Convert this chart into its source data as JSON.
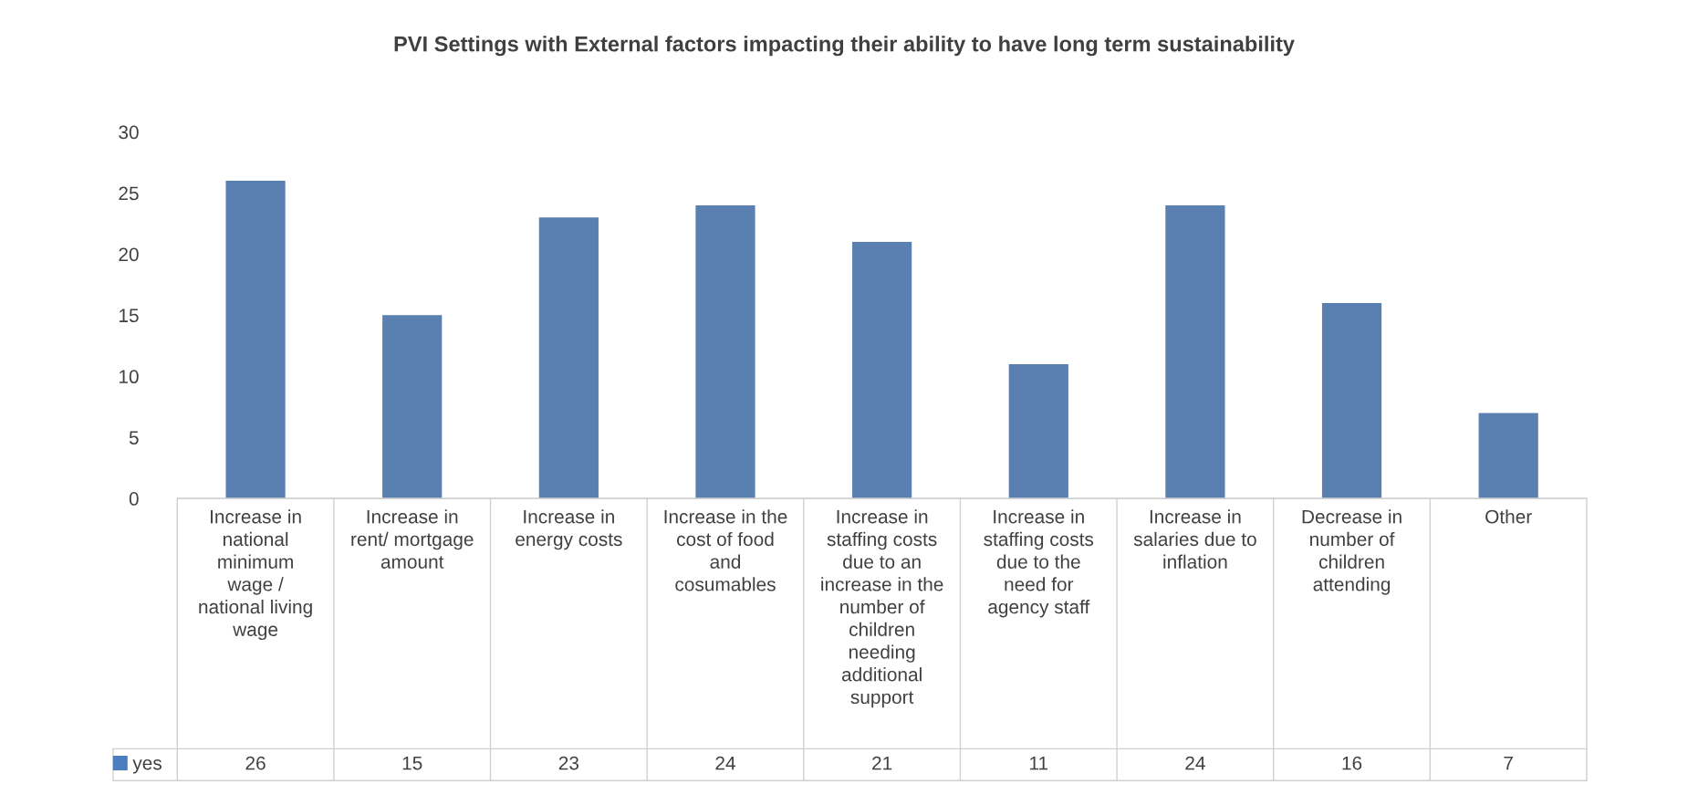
{
  "chart_data": {
    "type": "bar",
    "title": "PVI Settings with External factors impacting their ability to have long term sustainability",
    "categories": [
      "Increase in\nnational\nminimum\nwage /\nnational living\nwage",
      "Increase in\nrent/ mortgage\namount",
      "Increase in\nenergy costs",
      "Increase in the\ncost of food\nand\ncosumables",
      "Increase in\nstaffing costs\ndue to an\nincrease in the\nnumber of\nchildren\nneeding\nadditional\nsupport",
      "Increase in\nstaffing costs\ndue to the\nneed for\nagency staff",
      "Increase in\nsalaries due to\ninflation",
      "Decrease in\nnumber of\nchildren\nattending",
      "Other"
    ],
    "series": [
      {
        "name": "yes",
        "color": "#4a7ebf",
        "values": [
          26,
          15,
          23,
          24,
          21,
          11,
          24,
          16,
          7
        ]
      }
    ],
    "ylim": [
      0,
      30
    ],
    "yticks": [
      0,
      5,
      10,
      15,
      20,
      25,
      30
    ],
    "grid": false,
    "legend": "bottom left",
    "data_labels": true
  }
}
